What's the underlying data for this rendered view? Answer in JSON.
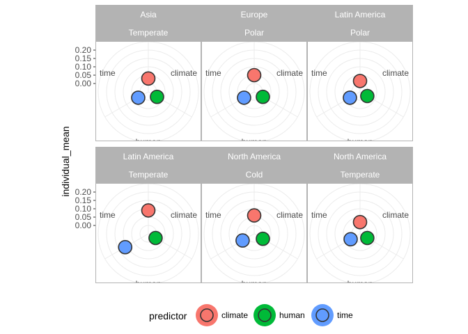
{
  "chart_data": {
    "type": "scatter",
    "coord": "polar",
    "axis_categories": [
      "climate",
      "human",
      "time"
    ],
    "ylabel": "individual_mean",
    "y_ticks": [
      "0.00",
      "0.05",
      "0.10",
      "0.15",
      "0.20"
    ],
    "ylim": [
      -0.05,
      0.25
    ],
    "legend": {
      "title": "predictor",
      "position": "bottom",
      "entries": [
        {
          "name": "climate",
          "color": "#F8766D"
        },
        {
          "name": "human",
          "color": "#00BA38"
        },
        {
          "name": "time",
          "color": "#619CFF"
        }
      ]
    },
    "colors": {
      "climate": "#F8766D",
      "human": "#00BA38",
      "time": "#619CFF",
      "strip": "#b3b3b3",
      "grid": "#ebebeb",
      "panel_border": "#b3b3b3"
    },
    "grid": true,
    "panels": [
      {
        "region": "Asia",
        "climate": "Temperate",
        "values": {
          "climate": 0.03,
          "human": 0.01,
          "time": 0.02
        }
      },
      {
        "region": "Europe",
        "climate": "Polar",
        "values": {
          "climate": 0.05,
          "human": 0.01,
          "time": 0.02
        }
      },
      {
        "region": "Latin America",
        "climate": "Polar",
        "values": {
          "climate": 0.015,
          "human": 0.0,
          "time": 0.02
        }
      },
      {
        "region": "Latin America",
        "climate": "Temperate",
        "values": {
          "climate": 0.09,
          "human": 0.0,
          "time": 0.11
        }
      },
      {
        "region": "North America",
        "climate": "Cold",
        "values": {
          "climate": 0.06,
          "human": 0.01,
          "time": 0.03
        }
      },
      {
        "region": "North America",
        "climate": "Temperate",
        "values": {
          "climate": 0.02,
          "human": 0.0,
          "time": 0.015
        }
      }
    ]
  }
}
